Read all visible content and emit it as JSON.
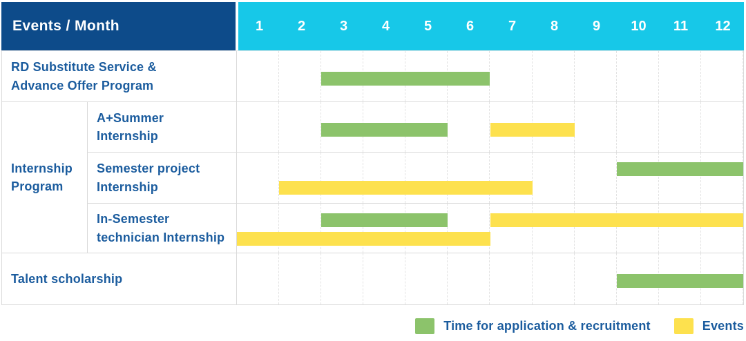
{
  "header": {
    "label": "Events / Month",
    "months": [
      "1",
      "2",
      "3",
      "4",
      "5",
      "6",
      "7",
      "8",
      "9",
      "10",
      "11",
      "12"
    ]
  },
  "colors": {
    "header_navy": "#0d4b8a",
    "header_cyan": "#17c8e8",
    "label_text_blue": "#1b5c9e",
    "application": "#8cc36b",
    "events": "#fde14e",
    "grid_line": "#dadada"
  },
  "labels": {
    "row_rd": "RD Substitute Service &\nAdvance Offer Program",
    "group_internship": "Internship\nProgram",
    "row_a_summer": "A+Summer\nInternship",
    "row_semester_project": "Semester project\nInternship",
    "row_in_semester": "In-Semester\ntechnician Internship",
    "row_talent": "Talent scholarship"
  },
  "legend": [
    {
      "series": "application",
      "color": "#8cc36b",
      "label": "Time for application & recruitment"
    },
    {
      "series": "events",
      "color": "#fde14e",
      "label": "Events"
    }
  ],
  "chart_data": {
    "type": "gantt",
    "title": "Events / Month",
    "x_axis": {
      "label": "Month",
      "ticks": [
        "1",
        "2",
        "3",
        "4",
        "5",
        "6",
        "7",
        "8",
        "9",
        "10",
        "11",
        "12"
      ],
      "range": [
        1,
        12
      ]
    },
    "series_legend": {
      "application": "Time for application & recruitment",
      "events": "Events"
    },
    "rows": [
      {
        "group": "RD Substitute Service & Advance Offer Program",
        "sub": null,
        "bars": [
          {
            "series": "application",
            "start_month": 3,
            "end_month": 6,
            "lane": 0
          }
        ]
      },
      {
        "group": "Internship Program",
        "sub": "A+Summer Internship",
        "bars": [
          {
            "series": "application",
            "start_month": 3,
            "end_month": 5,
            "lane": 0
          },
          {
            "series": "events",
            "start_month": 7,
            "end_month": 8,
            "lane": 0
          }
        ]
      },
      {
        "group": "Internship Program",
        "sub": "Semester project Internship",
        "bars": [
          {
            "series": "application",
            "start_month": 10,
            "end_month": 12,
            "lane": 0
          },
          {
            "series": "events",
            "start_month": 2,
            "end_month": 7,
            "lane": 1
          }
        ]
      },
      {
        "group": "Internship Program",
        "sub": "In-Semester technician Internship",
        "bars": [
          {
            "series": "application",
            "start_month": 3,
            "end_month": 5,
            "lane": 0
          },
          {
            "series": "events",
            "start_month": 7,
            "end_month": 12,
            "lane": 0
          },
          {
            "series": "events",
            "start_month": 1,
            "end_month": 6,
            "lane": 1
          }
        ]
      },
      {
        "group": "Talent scholarship",
        "sub": null,
        "bars": [
          {
            "series": "application",
            "start_month": 10,
            "end_month": 12,
            "lane": 0
          }
        ]
      }
    ]
  }
}
